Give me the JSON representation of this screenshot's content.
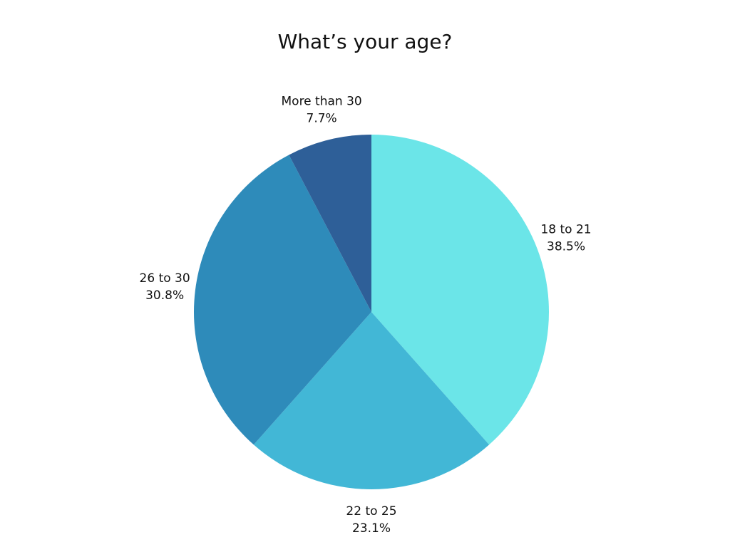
{
  "chart_data": {
    "type": "pie",
    "title": "What’s your age?",
    "categories": [
      "18 to 21",
      "22 to 25",
      "26 to 30",
      "More than 30"
    ],
    "values": [
      38.5,
      23.1,
      30.8,
      7.7
    ],
    "value_labels": [
      "38.5%",
      "23.1%",
      "30.8%",
      "7.7%"
    ],
    "colors": [
      "#6be5e8",
      "#42b7d6",
      "#2e8bba",
      "#2e5f98"
    ]
  }
}
